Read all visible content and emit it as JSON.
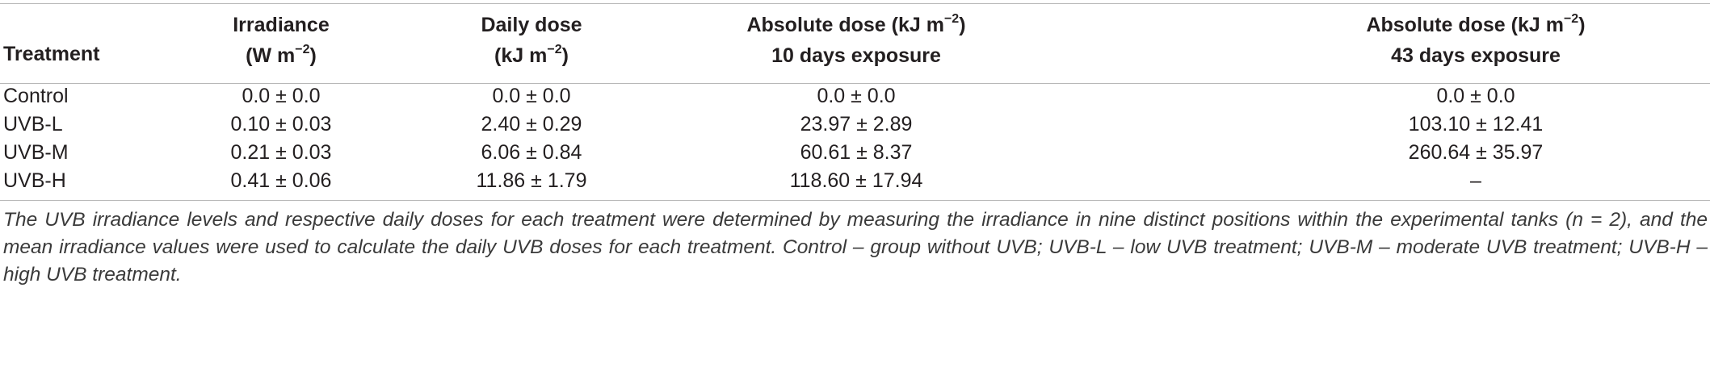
{
  "table": {
    "headers": {
      "treatment": "Treatment",
      "irradiance_line1": "Irradiance",
      "irradiance_unit_pre": "(W m",
      "irradiance_unit_exp": "−2",
      "irradiance_unit_post": ")",
      "daily_line1": "Daily dose",
      "daily_unit_pre": "(kJ m",
      "daily_unit_exp": "−2",
      "daily_unit_post": ")",
      "abs10_line1_pre": "Absolute dose (kJ m",
      "abs10_line1_exp": "−2",
      "abs10_line1_post": ")",
      "abs10_line2": "10 days exposure",
      "abs43_line1_pre": "Absolute dose (kJ m",
      "abs43_line1_exp": "−2",
      "abs43_line1_post": ")",
      "abs43_line2": "43 days exposure"
    },
    "rows": [
      {
        "treatment": "Control",
        "irradiance": "0.0 ± 0.0",
        "daily": "0.0 ± 0.0",
        "abs10": "0.0 ± 0.0",
        "abs43": "0.0 ± 0.0"
      },
      {
        "treatment": "UVB-L",
        "irradiance": "0.10 ± 0.03",
        "daily": "2.40 ± 0.29",
        "abs10": "23.97 ± 2.89",
        "abs43": "103.10 ± 12.41"
      },
      {
        "treatment": "UVB-M",
        "irradiance": "0.21 ± 0.03",
        "daily": "6.06 ± 0.84",
        "abs10": "60.61 ± 8.37",
        "abs43": "260.64 ± 35.97"
      },
      {
        "treatment": "UVB-H",
        "irradiance": "0.41 ± 0.06",
        "daily": "11.86 ± 1.79",
        "abs10": "118.60 ± 17.94",
        "abs43": "–"
      }
    ]
  },
  "footnote": "The UVB irradiance levels and respective daily doses for each treatment were determined by measuring the irradiance in nine distinct positions within the experimental tanks (n = 2), and the mean irradiance values were used to calculate the daily UVB doses for each treatment. Control – group without UVB; UVB-L – low UVB treatment; UVB-M – moderate UVB treatment; UVB-H – high UVB treatment."
}
